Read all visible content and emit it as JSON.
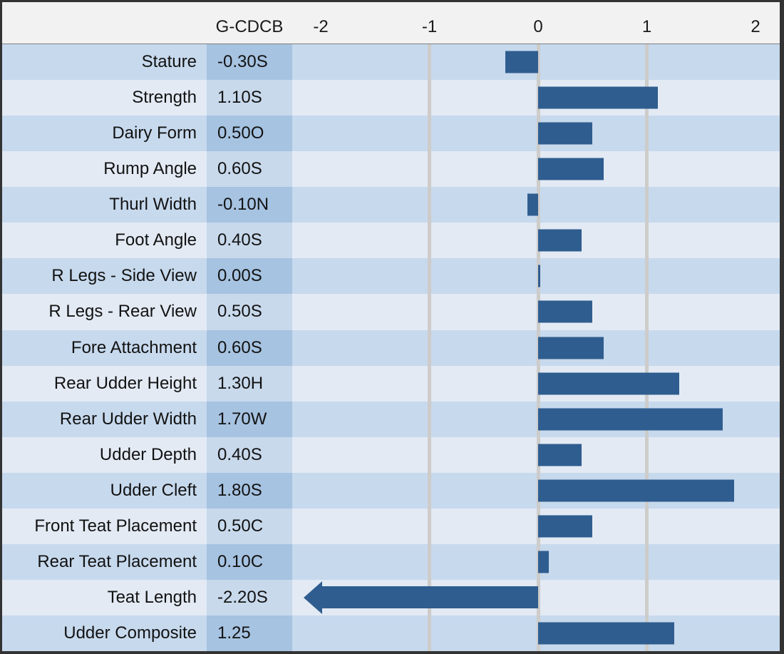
{
  "header": {
    "value_column_label": "G-CDCB",
    "axis_ticks": [
      {
        "label": "-2",
        "value": -2,
        "gridline": false
      },
      {
        "label": "-1",
        "value": -1,
        "gridline": true
      },
      {
        "label": "0",
        "value": 0,
        "gridline": true
      },
      {
        "label": "1",
        "value": 1,
        "gridline": true
      },
      {
        "label": "2",
        "value": 2,
        "gridline": false
      }
    ]
  },
  "rows": [
    {
      "label": "Stature",
      "value_label": "-0.30S",
      "value": -0.3
    },
    {
      "label": "Strength",
      "value_label": "1.10S",
      "value": 1.1
    },
    {
      "label": "Dairy Form",
      "value_label": "0.50O",
      "value": 0.5
    },
    {
      "label": "Rump Angle",
      "value_label": "0.60S",
      "value": 0.6
    },
    {
      "label": "Thurl Width",
      "value_label": "-0.10N",
      "value": -0.1
    },
    {
      "label": "Foot Angle",
      "value_label": "0.40S",
      "value": 0.4
    },
    {
      "label": "R Legs - Side View",
      "value_label": "0.00S",
      "value": 0.0
    },
    {
      "label": "R Legs - Rear View",
      "value_label": "0.50S",
      "value": 0.5
    },
    {
      "label": "Fore Attachment",
      "value_label": "0.60S",
      "value": 0.6
    },
    {
      "label": "Rear Udder Height",
      "value_label": "1.30H",
      "value": 1.3
    },
    {
      "label": "Rear Udder Width",
      "value_label": "1.70W",
      "value": 1.7
    },
    {
      "label": "Udder Depth",
      "value_label": "0.40S",
      "value": 0.4
    },
    {
      "label": "Udder Cleft",
      "value_label": "1.80S",
      "value": 1.8
    },
    {
      "label": "Front Teat Placement",
      "value_label": "0.50C",
      "value": 0.5
    },
    {
      "label": "Rear Teat Placement",
      "value_label": "0.10C",
      "value": 0.1
    },
    {
      "label": "Teat Length",
      "value_label": "-2.20S",
      "value": -2.2,
      "off_scale_arrow": true
    },
    {
      "label": "Udder Composite",
      "value_label": "1.25",
      "value": 1.25
    }
  ],
  "colors": {
    "border": "#333333",
    "header_bg": "#F2F2F2",
    "header_separator": "#808080",
    "row_dark": "#C7D9ED",
    "row_light": "#E3EAF4",
    "value_dark": "#A6C3E1",
    "value_light": "#C8D9EC",
    "gridline": "#CDCCCA",
    "bar": "#2F5D8F"
  },
  "chart_data": {
    "type": "bar",
    "orientation": "horizontal",
    "title": "",
    "value_column_header": "G-CDCB",
    "categories": [
      "Stature",
      "Strength",
      "Dairy Form",
      "Rump Angle",
      "Thurl Width",
      "Foot Angle",
      "R Legs - Side View",
      "R Legs - Rear View",
      "Fore Attachment",
      "Rear Udder Height",
      "Rear Udder Width",
      "Udder Depth",
      "Udder Cleft",
      "Front Teat Placement",
      "Rear Teat Placement",
      "Teat Length",
      "Udder Composite"
    ],
    "values": [
      -0.3,
      1.1,
      0.5,
      0.6,
      -0.1,
      0.4,
      0.0,
      0.5,
      0.6,
      1.3,
      1.7,
      0.4,
      1.8,
      0.5,
      0.1,
      -2.2,
      1.25
    ],
    "value_labels": [
      "-0.30S",
      "1.10S",
      "0.50O",
      "0.60S",
      "-0.10N",
      "0.40S",
      "0.00S",
      "0.50S",
      "0.60S",
      "1.30H",
      "1.70W",
      "0.40S",
      "1.80S",
      "0.50C",
      "0.10C",
      "-2.20S",
      "1.25"
    ],
    "xlim": [
      -2.25,
      2.25
    ],
    "x_ticks": [
      -2,
      -1,
      0,
      1,
      2
    ],
    "gridlines_at": [
      -1,
      0,
      1
    ],
    "off_scale_arrow_categories": [
      "Teat Length"
    ],
    "bar_color": "#2F5D8F",
    "legend": "none"
  }
}
